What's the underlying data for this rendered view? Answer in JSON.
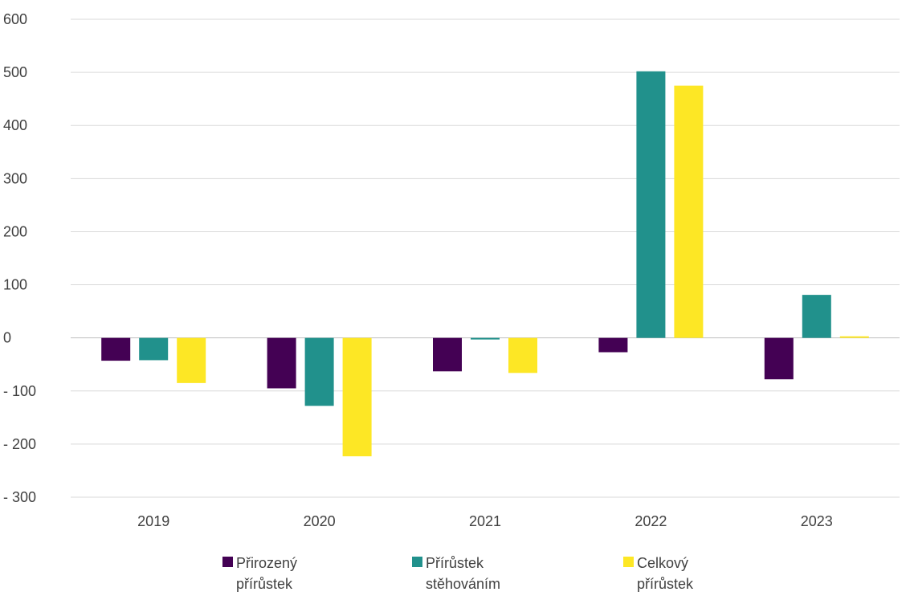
{
  "chart_data": {
    "type": "bar",
    "categories": [
      "2019",
      "2020",
      "2021",
      "2022",
      "2023"
    ],
    "series": [
      {
        "name": "Přirozený přírůstek",
        "color": "#440154",
        "values": [
          -43,
          -95,
          -63,
          -27,
          -78
        ]
      },
      {
        "name": "Přírůstek stěhováním",
        "color": "#21918C",
        "values": [
          -42,
          -128,
          -3,
          502,
          81
        ]
      },
      {
        "name": "Celkový přírůstek",
        "color": "#FDE725",
        "values": [
          -85,
          -223,
          -66,
          475,
          3
        ]
      }
    ],
    "ylim": [
      -300,
      600
    ],
    "yticks": [
      600,
      500,
      400,
      300,
      200,
      100,
      0,
      -100,
      -200,
      -300
    ],
    "ytick_labels": [
      "600",
      "500",
      "400",
      "300",
      "200",
      "100",
      "0",
      "- 100",
      "- 200",
      "- 300"
    ],
    "grid": true,
    "legend_position": "bottom",
    "title": "",
    "xlabel": "",
    "ylabel": ""
  },
  "legend": {
    "items": [
      {
        "line1": "Přirozený",
        "line2": "přírůstek"
      },
      {
        "line1": "Přírůstek",
        "line2": "stěhováním"
      },
      {
        "line1": "Celkový",
        "line2": "přírůstek"
      }
    ]
  }
}
